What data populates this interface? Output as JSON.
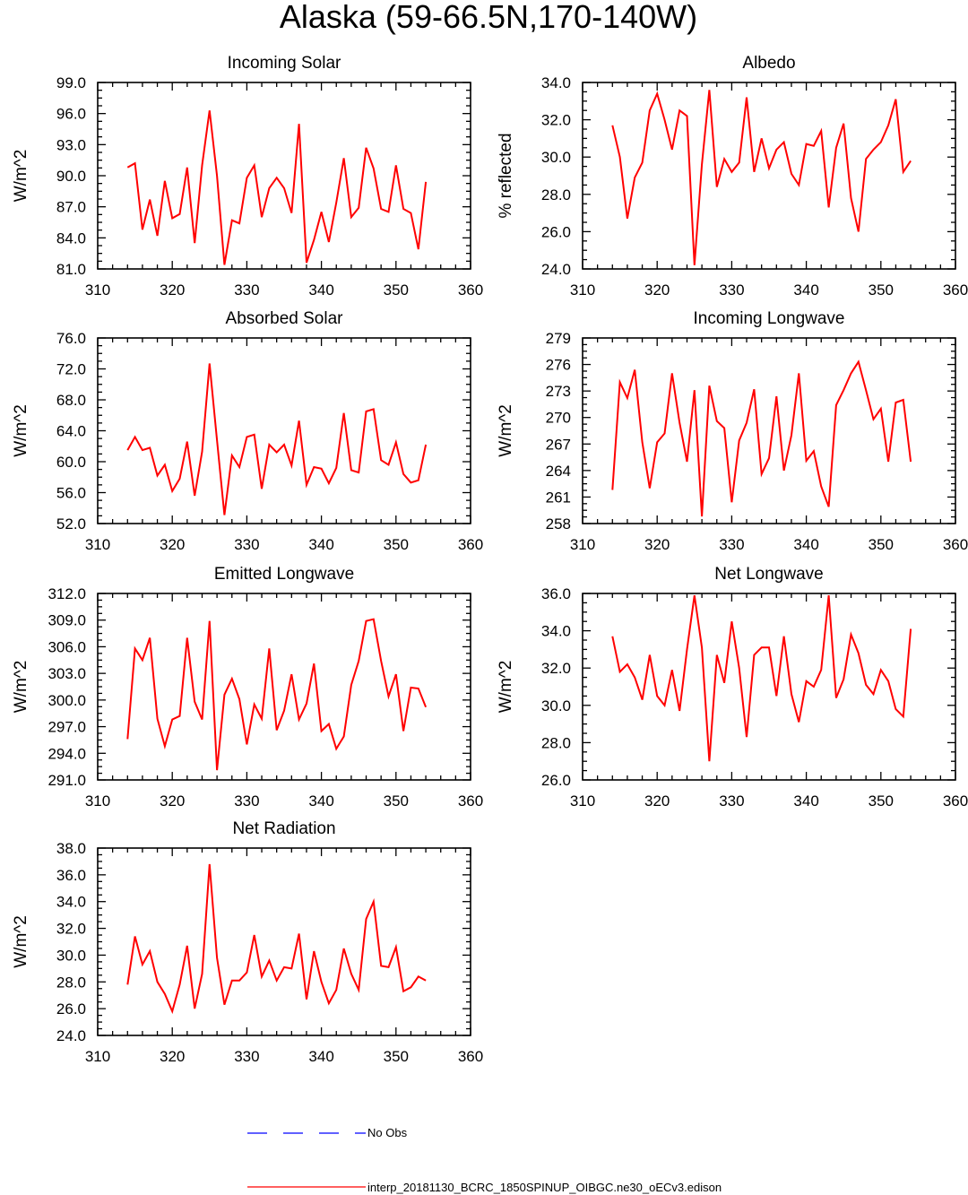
{
  "title": "Alaska (59-66.5N,170-140W)",
  "legend": {
    "obs_label": "No Obs",
    "obs_color": "#0000ff",
    "model_label": "interp_20181130_BCRC_1850SPINUP_OIBGC.ne30_oECv3.edison",
    "model_color": "#ff0000"
  },
  "chart_data": [
    {
      "type": "line",
      "title": "Incoming Solar",
      "ylabel": "W/m^2",
      "xlim": [
        310,
        360
      ],
      "ylim": [
        81,
        99
      ],
      "x_ticks": [
        310,
        320,
        330,
        340,
        350,
        360
      ],
      "y_ticks": [
        "81.0",
        "84.0",
        "87.0",
        "90.0",
        "93.0",
        "96.0",
        "99.0"
      ],
      "x": [
        314,
        315,
        316,
        317,
        318,
        319,
        320,
        321,
        322,
        323,
        324,
        325,
        326,
        327,
        328,
        329,
        330,
        331,
        332,
        333,
        334,
        335,
        336,
        337,
        338,
        339,
        340,
        341,
        342,
        343,
        344,
        345,
        346,
        347,
        348,
        349,
        350,
        351,
        352,
        353,
        354
      ],
      "values": [
        90.8,
        91.2,
        84.8,
        87.7,
        84.2,
        89.5,
        85.9,
        86.3,
        90.8,
        83.5,
        91.0,
        96.3,
        90.0,
        81.4,
        85.7,
        85.4,
        89.8,
        91.0,
        86.0,
        88.8,
        89.8,
        88.8,
        86.4,
        95.0,
        81.6,
        83.8,
        86.5,
        83.6,
        87.4,
        91.7,
        86.0,
        86.9,
        92.7,
        90.7,
        86.8,
        86.5,
        91.0,
        86.8,
        86.4,
        82.9,
        89.4
      ]
    },
    {
      "type": "line",
      "title": "Albedo",
      "ylabel": "% reflected",
      "xlim": [
        310,
        360
      ],
      "ylim": [
        24,
        34
      ],
      "x_ticks": [
        310,
        320,
        330,
        340,
        350,
        360
      ],
      "y_ticks": [
        "24.0",
        "26.0",
        "28.0",
        "30.0",
        "32.0",
        "34.0"
      ],
      "x": [
        314,
        315,
        316,
        317,
        318,
        319,
        320,
        321,
        322,
        323,
        324,
        325,
        326,
        327,
        328,
        329,
        330,
        331,
        332,
        333,
        334,
        335,
        336,
        337,
        338,
        339,
        340,
        341,
        342,
        343,
        344,
        345,
        346,
        347,
        348,
        349,
        350,
        351,
        352,
        353,
        354
      ],
      "values": [
        31.7,
        30.0,
        26.7,
        28.9,
        29.7,
        32.5,
        33.4,
        32.0,
        30.4,
        32.5,
        32.2,
        24.2,
        29.6,
        33.6,
        28.4,
        29.9,
        29.2,
        29.7,
        33.2,
        29.2,
        31.0,
        29.4,
        30.4,
        30.8,
        29.1,
        28.5,
        30.7,
        30.6,
        31.4,
        27.3,
        30.5,
        31.8,
        27.8,
        26.0,
        29.9,
        30.4,
        30.8,
        31.7,
        33.1,
        29.2,
        29.8
      ]
    },
    {
      "type": "line",
      "title": "Absorbed Solar",
      "ylabel": "W/m^2",
      "xlim": [
        310,
        360
      ],
      "ylim": [
        52,
        76
      ],
      "x_ticks": [
        310,
        320,
        330,
        340,
        350,
        360
      ],
      "y_ticks": [
        "52.0",
        "56.0",
        "60.0",
        "64.0",
        "68.0",
        "72.0",
        "76.0"
      ],
      "x": [
        314,
        315,
        316,
        317,
        318,
        319,
        320,
        321,
        322,
        323,
        324,
        325,
        326,
        327,
        328,
        329,
        330,
        331,
        332,
        333,
        334,
        335,
        336,
        337,
        338,
        339,
        340,
        341,
        342,
        343,
        344,
        345,
        346,
        347,
        348,
        349,
        350,
        351,
        352,
        353,
        354
      ],
      "values": [
        61.5,
        63.2,
        61.5,
        61.8,
        58.2,
        59.6,
        56.2,
        57.8,
        62.6,
        55.6,
        61.3,
        72.7,
        62.8,
        53.1,
        60.8,
        59.3,
        63.2,
        63.5,
        56.5,
        62.2,
        61.2,
        62.2,
        59.5,
        65.3,
        57.0,
        59.3,
        59.1,
        57.2,
        59.2,
        66.3,
        58.9,
        58.6,
        66.5,
        66.8,
        60.2,
        59.6,
        62.5,
        58.4,
        57.3,
        57.6,
        62.2
      ]
    },
    {
      "type": "line",
      "title": "Incoming Longwave",
      "ylabel": "W/m^2",
      "xlim": [
        310,
        360
      ],
      "ylim": [
        258,
        279
      ],
      "x_ticks": [
        310,
        320,
        330,
        340,
        350,
        360
      ],
      "y_ticks": [
        "258",
        "261",
        "264",
        "267",
        "270",
        "273",
        "276",
        "279"
      ],
      "x": [
        314,
        315,
        316,
        317,
        318,
        319,
        320,
        321,
        322,
        323,
        324,
        325,
        326,
        327,
        328,
        329,
        330,
        331,
        332,
        333,
        334,
        335,
        336,
        337,
        338,
        339,
        340,
        341,
        342,
        343,
        344,
        345,
        346,
        347,
        348,
        349,
        350,
        351,
        352,
        353,
        354
      ],
      "values": [
        261.8,
        274.0,
        272.2,
        275.4,
        267.2,
        262.0,
        267.2,
        268.2,
        275.0,
        269.4,
        265.0,
        273.1,
        258.8,
        273.6,
        269.6,
        268.8,
        260.4,
        267.4,
        269.4,
        273.2,
        263.6,
        265.4,
        272.4,
        264.0,
        268.0,
        275.0,
        265.1,
        266.2,
        262.2,
        259.9,
        271.4,
        273.1,
        275.0,
        276.3,
        273.1,
        269.8,
        271.0,
        265.0,
        271.7,
        272.0,
        265.0
      ]
    },
    {
      "type": "line",
      "title": "Emitted Longwave",
      "ylabel": "W/m^2",
      "xlim": [
        310,
        360
      ],
      "ylim": [
        291,
        312
      ],
      "x_ticks": [
        310,
        320,
        330,
        340,
        350,
        360
      ],
      "y_ticks": [
        "291.0",
        "294.0",
        "297.0",
        "300.0",
        "303.0",
        "306.0",
        "309.0",
        "312.0"
      ],
      "x": [
        314,
        315,
        316,
        317,
        318,
        319,
        320,
        321,
        322,
        323,
        324,
        325,
        326,
        327,
        328,
        329,
        330,
        331,
        332,
        333,
        334,
        335,
        336,
        337,
        338,
        339,
        340,
        341,
        342,
        343,
        344,
        345,
        346,
        347,
        348,
        349,
        350,
        351,
        352,
        353,
        354
      ],
      "values": [
        295.6,
        305.8,
        304.5,
        307.0,
        297.9,
        294.8,
        297.8,
        298.2,
        307.0,
        299.8,
        297.8,
        308.9,
        292.1,
        300.6,
        302.4,
        300.1,
        295.0,
        299.5,
        297.9,
        305.8,
        296.6,
        298.8,
        302.9,
        297.8,
        299.6,
        304.1,
        296.5,
        297.3,
        294.5,
        295.9,
        301.7,
        304.4,
        308.9,
        309.1,
        304.4,
        300.4,
        302.9,
        296.5,
        301.4,
        301.3,
        299.2
      ]
    },
    {
      "type": "line",
      "title": "Net Longwave",
      "ylabel": "W/m^2",
      "xlim": [
        310,
        360
      ],
      "ylim": [
        26,
        36
      ],
      "x_ticks": [
        310,
        320,
        330,
        340,
        350,
        360
      ],
      "y_ticks": [
        "26.0",
        "28.0",
        "30.0",
        "32.0",
        "34.0",
        "36.0"
      ],
      "x": [
        314,
        315,
        316,
        317,
        318,
        319,
        320,
        321,
        322,
        323,
        324,
        325,
        326,
        327,
        328,
        329,
        330,
        331,
        332,
        333,
        334,
        335,
        336,
        337,
        338,
        339,
        340,
        341,
        342,
        343,
        344,
        345,
        346,
        347,
        348,
        349,
        350,
        351,
        352,
        353,
        354
      ],
      "values": [
        33.7,
        31.8,
        32.2,
        31.5,
        30.3,
        32.7,
        30.5,
        30.0,
        31.9,
        29.7,
        33.0,
        35.9,
        33.1,
        27.0,
        32.7,
        31.2,
        34.5,
        32.0,
        28.3,
        32.7,
        33.1,
        33.1,
        30.5,
        33.7,
        30.6,
        29.1,
        31.3,
        31.0,
        31.9,
        35.9,
        30.4,
        31.4,
        33.8,
        32.8,
        31.1,
        30.6,
        31.9,
        31.3,
        29.8,
        29.4,
        34.1
      ]
    },
    {
      "type": "line",
      "title": "Net Radiation",
      "ylabel": "W/m^2",
      "xlim": [
        310,
        360
      ],
      "ylim": [
        24,
        38
      ],
      "x_ticks": [
        310,
        320,
        330,
        340,
        350,
        360
      ],
      "y_ticks": [
        "24.0",
        "26.0",
        "28.0",
        "30.0",
        "32.0",
        "34.0",
        "36.0",
        "38.0"
      ],
      "x": [
        314,
        315,
        316,
        317,
        318,
        319,
        320,
        321,
        322,
        323,
        324,
        325,
        326,
        327,
        328,
        329,
        330,
        331,
        332,
        333,
        334,
        335,
        336,
        337,
        338,
        339,
        340,
        341,
        342,
        343,
        344,
        345,
        346,
        347,
        348,
        349,
        350,
        351,
        352,
        353,
        354
      ],
      "values": [
        27.8,
        31.4,
        29.3,
        30.3,
        28.0,
        27.1,
        25.8,
        27.8,
        30.7,
        26.0,
        28.6,
        36.8,
        29.8,
        26.3,
        28.1,
        28.1,
        28.7,
        31.5,
        28.4,
        29.6,
        28.1,
        29.1,
        29.0,
        31.6,
        26.7,
        30.3,
        28.0,
        26.4,
        27.4,
        30.5,
        28.6,
        27.4,
        32.7,
        34.0,
        29.2,
        29.1,
        30.6,
        27.3,
        27.6,
        28.4,
        28.1
      ]
    }
  ]
}
